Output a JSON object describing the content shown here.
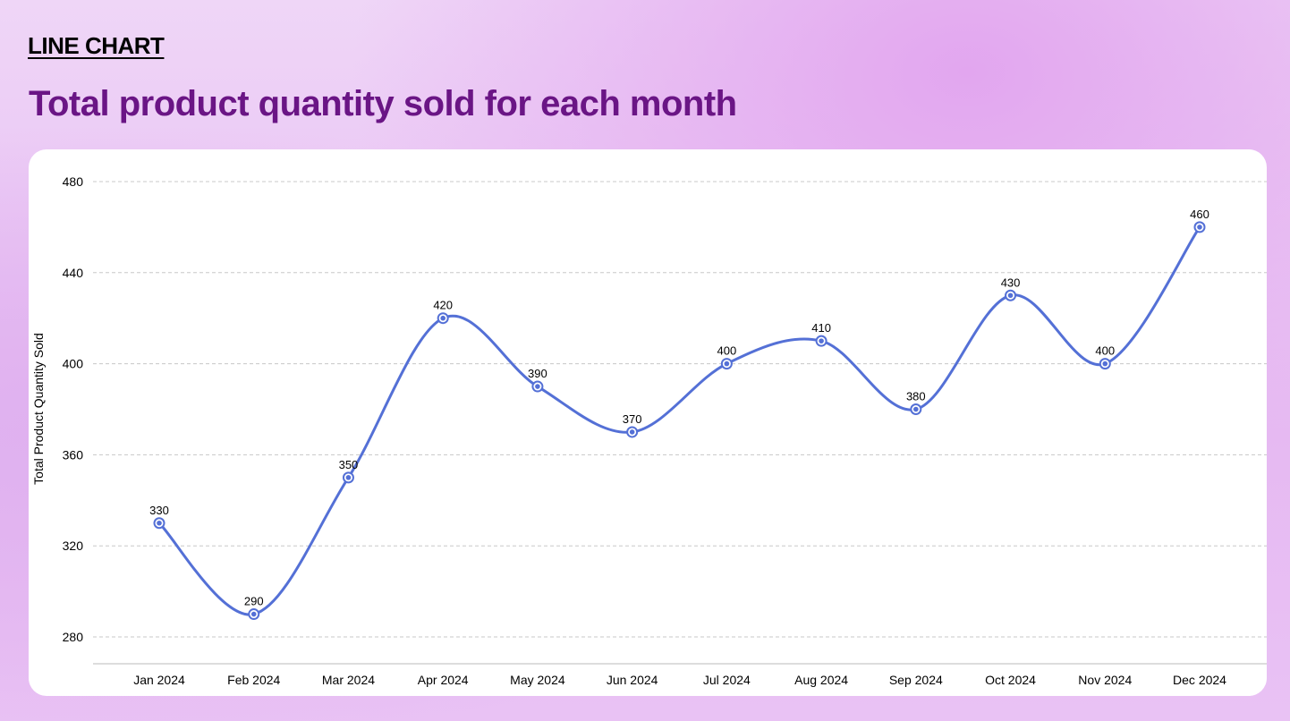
{
  "header": {
    "eyebrow": "LINE CHART",
    "title": "Total product quantity sold for each month"
  },
  "chart_data": {
    "type": "line",
    "title": "Total product quantity sold for each month",
    "xlabel": "",
    "ylabel": "Total Product Quantity Sold",
    "categories": [
      "Jan 2024",
      "Feb 2024",
      "Mar 2024",
      "Apr 2024",
      "May 2024",
      "Jun 2024",
      "Jul 2024",
      "Aug 2024",
      "Sep 2024",
      "Oct 2024",
      "Nov 2024",
      "Dec 2024"
    ],
    "values": [
      330,
      290,
      350,
      420,
      390,
      370,
      400,
      410,
      380,
      430,
      400,
      460
    ],
    "yticks": [
      280,
      320,
      360,
      400,
      440,
      480
    ],
    "ylim": [
      268,
      480
    ],
    "grid": "horizontal dashed",
    "smooth": true,
    "data_labels": true,
    "colors": {
      "line": "#5470d6",
      "title": "#6a1585"
    }
  }
}
